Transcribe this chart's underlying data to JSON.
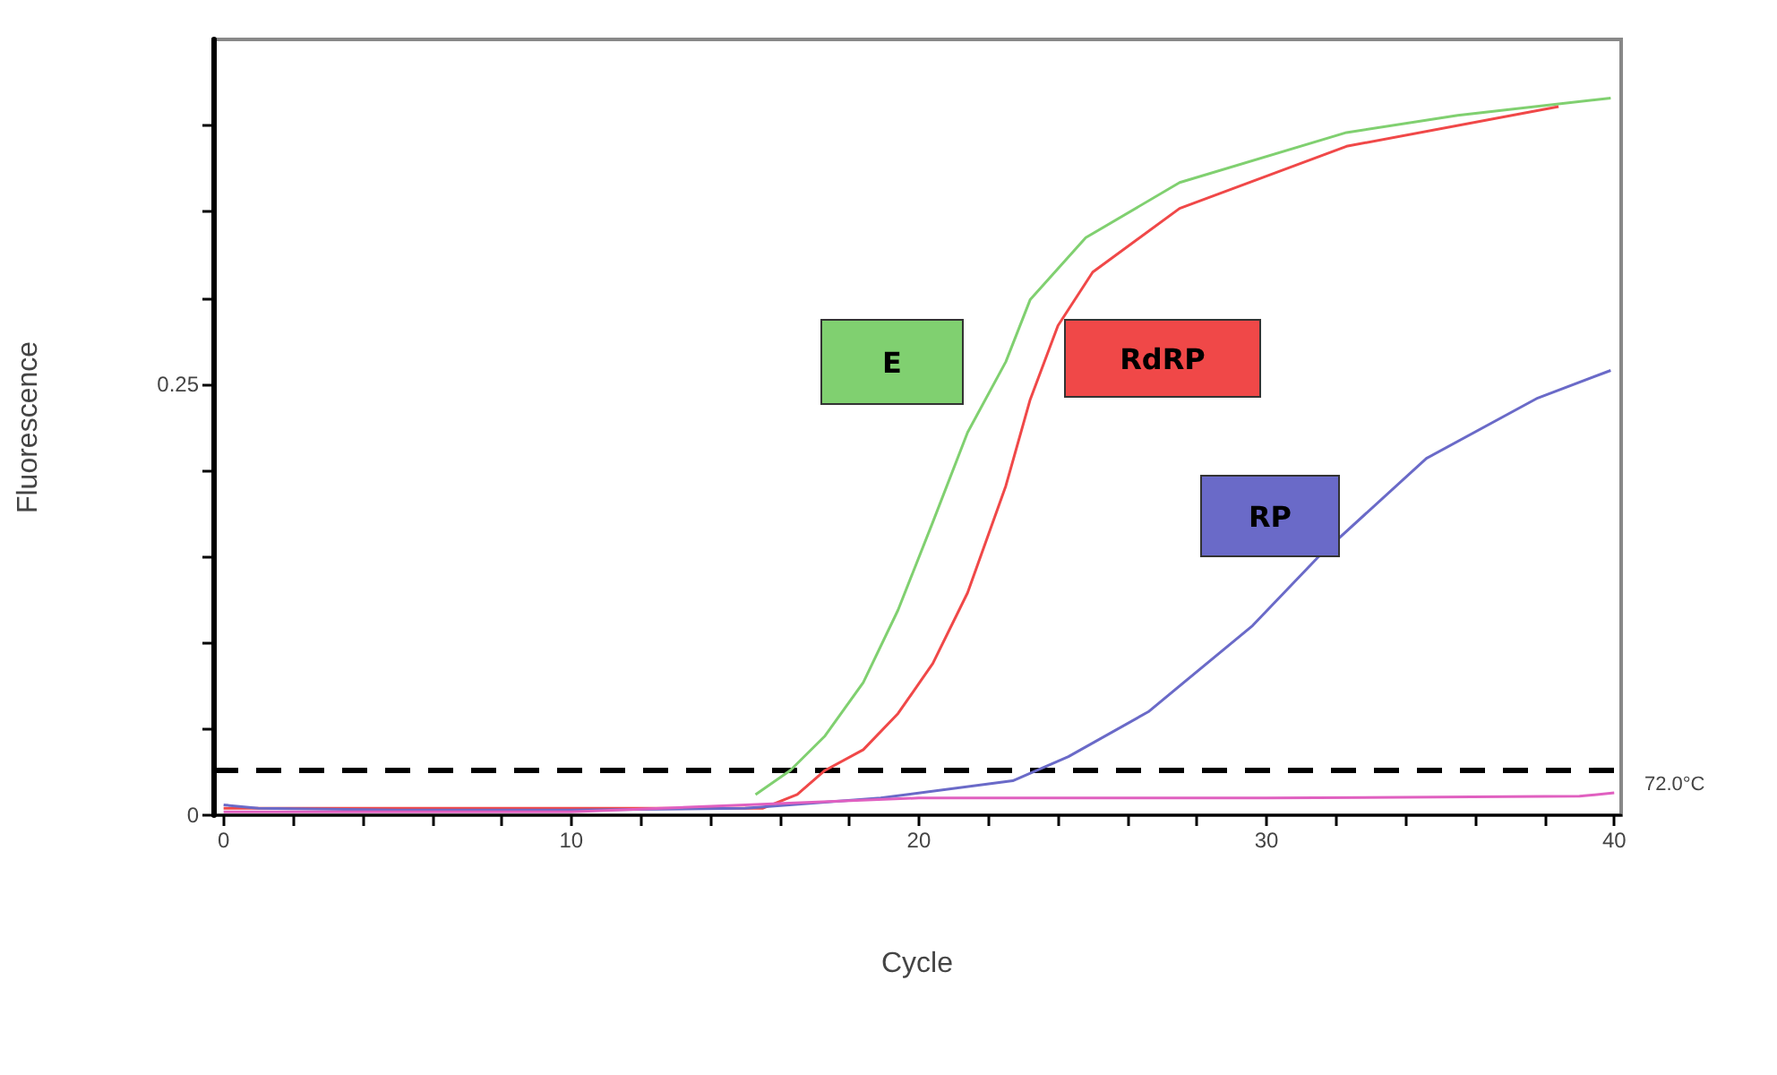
{
  "chart_data": {
    "type": "line",
    "xlabel": "Cycle",
    "ylabel": "Fluorescence",
    "xlim": [
      -0.3,
      40.2
    ],
    "ylim": [
      0,
      0.45
    ],
    "xticks": [
      0,
      {
        "value": 2,
        "label": null
      },
      {
        "value": 4,
        "label": null
      },
      {
        "value": 6,
        "label": null
      },
      {
        "value": 8,
        "label": null
      },
      10,
      {
        "value": 12,
        "label": null
      },
      {
        "value": 14,
        "label": null
      },
      {
        "value": 16,
        "label": null
      },
      {
        "value": 18,
        "label": null
      },
      20,
      {
        "value": 22,
        "label": null
      },
      {
        "value": 24,
        "label": null
      },
      {
        "value": 26,
        "label": null
      },
      {
        "value": 28,
        "label": null
      },
      30,
      {
        "value": 32,
        "label": null
      },
      {
        "value": 34,
        "label": null
      },
      {
        "value": 36,
        "label": null
      },
      {
        "value": 38,
        "label": null
      },
      40
    ],
    "yticks": [
      0,
      {
        "value": 0.05,
        "label": null
      },
      {
        "value": 0.1,
        "label": null
      },
      {
        "value": 0.15,
        "label": null
      },
      {
        "value": 0.2,
        "label": null
      },
      0.25,
      {
        "value": 0.3,
        "label": null
      },
      {
        "value": 0.35,
        "label": null
      },
      {
        "value": 0.4,
        "label": null
      }
    ],
    "grid": false,
    "legend": false,
    "marker": "none",
    "line_style": "solid",
    "series": [
      {
        "name": "E",
        "color": "#80d070",
        "x": [
          15.3,
          16.3,
          17.3,
          18.4,
          19.4,
          20.4,
          21.4,
          22.5,
          23.2,
          24.8,
          27.5,
          32.3,
          35.5,
          39.9
        ],
        "values": [
          0.012,
          0.026,
          0.046,
          0.077,
          0.119,
          0.17,
          0.222,
          0.263,
          0.299,
          0.335,
          0.367,
          0.396,
          0.406,
          0.416
        ]
      },
      {
        "name": "RdRP",
        "color": "#f04848",
        "x": [
          0,
          15.5,
          16.5,
          17.3,
          18.4,
          19.4,
          20.4,
          21.4,
          22.5,
          23.2,
          24,
          25,
          27.5,
          32.3,
          38.4
        ],
        "values": [
          0.004,
          0.004,
          0.012,
          0.026,
          0.038,
          0.059,
          0.088,
          0.129,
          0.191,
          0.241,
          0.284,
          0.315,
          0.352,
          0.388,
          0.411
        ]
      },
      {
        "name": "RP",
        "color": "#6a6ac8",
        "x": [
          0,
          1,
          5,
          10,
          15,
          18.9,
          22.7,
          24.3,
          26.6,
          29.6,
          31.5,
          34.6,
          37.8,
          39.9
        ],
        "values": [
          0.006,
          0.004,
          0.003,
          0.003,
          0.004,
          0.01,
          0.02,
          0.034,
          0.06,
          0.11,
          0.15,
          0.207,
          0.242,
          0.258
        ]
      },
      {
        "color": "#e060c0",
        "x": [
          0,
          10,
          15,
          20,
          30,
          39,
          40
        ],
        "values": [
          0.002,
          0.002,
          0.006,
          0.01,
          0.01,
          0.011,
          0.013
        ]
      }
    ],
    "ref_lines": [
      {
        "axis": "y",
        "value": 0.026,
        "color": "#000000",
        "line_style": "dashed"
      }
    ],
    "annotations": [
      "72.0°C"
    ]
  }
}
